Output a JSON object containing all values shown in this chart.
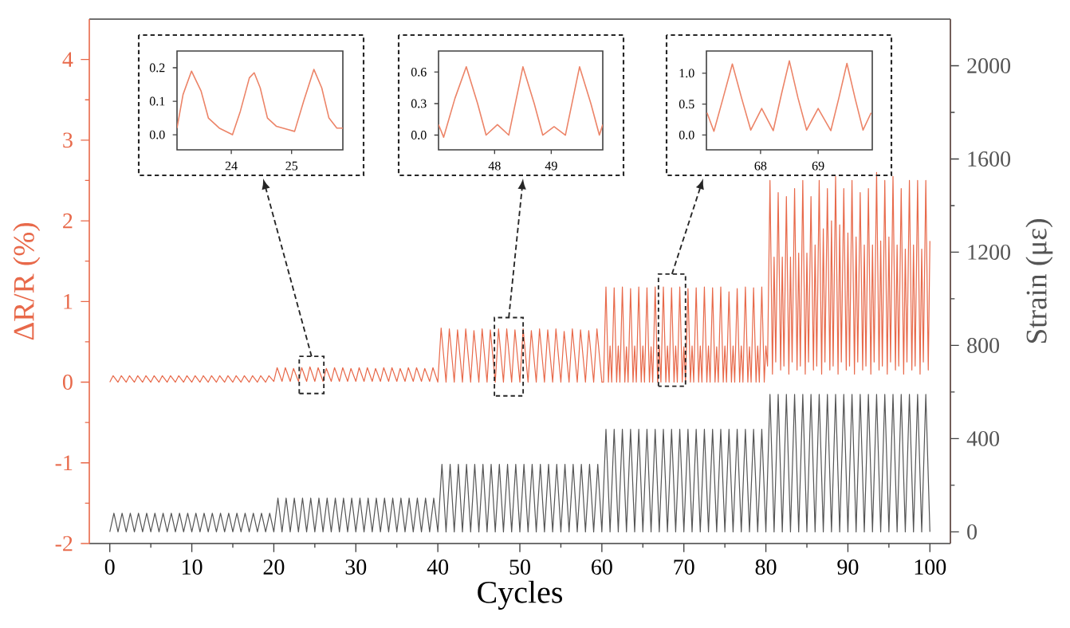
{
  "chart_data": [
    {
      "type": "line",
      "xlabel": "Cycles",
      "ylabel": "ΔR/R (%)",
      "y2label": "Strain (με)",
      "xlim": [
        -2.5,
        102.5
      ],
      "xticks": [
        0,
        10,
        20,
        30,
        40,
        50,
        60,
        70,
        80,
        90,
        100
      ],
      "ylim": [
        -2,
        4.5
      ],
      "yticks": [
        -2,
        -1,
        0,
        1,
        2,
        3,
        4
      ],
      "y2lim": [
        -50,
        2200
      ],
      "y2ticks": [
        0,
        400,
        800,
        1200,
        1600,
        2000
      ],
      "series": [
        {
          "color": "#e8694a",
          "x": [
            0,
            0.4,
            1,
            1.4,
            2,
            2.4,
            3,
            3.4,
            4,
            4.4,
            5,
            5.4,
            6,
            6.4,
            7,
            7.4,
            8,
            8.4,
            9,
            9.4,
            10,
            10.4,
            11,
            11.4,
            12,
            12.4,
            13,
            13.4,
            14,
            14.4,
            15,
            15.4,
            16,
            16.4,
            17,
            17.4,
            18,
            18.4,
            19,
            19.4,
            20,
            20.4,
            21,
            21.4,
            22,
            22.4,
            23,
            23.4,
            24,
            24.4,
            25,
            25.4,
            26,
            26.4,
            27,
            27.4,
            28,
            28.4,
            29,
            29.4,
            30,
            30.4,
            31,
            31.4,
            32,
            32.4,
            33,
            33.4,
            34,
            34.4,
            35,
            35.4,
            36,
            36.4,
            37,
            37.4,
            38,
            38.4,
            39,
            39.4,
            40,
            40.4,
            41,
            41.4,
            42,
            42.4,
            43,
            43.4,
            44,
            44.4,
            45,
            45.4,
            46,
            46.4,
            47,
            47.4,
            48,
            48.4,
            49,
            49.4,
            50,
            50.4,
            51,
            51.4,
            52,
            52.4,
            53,
            53.4,
            54,
            54.4,
            55,
            55.4,
            56,
            56.4,
            57,
            57.4,
            58,
            58.4,
            59,
            59.4,
            60,
            60.2,
            60.5,
            60.8,
            61,
            61.2,
            61.5,
            61.8,
            62,
            62.2,
            62.5,
            62.8,
            63,
            63.2,
            63.5,
            63.8,
            64,
            64.2,
            64.5,
            64.8,
            65,
            65.2,
            65.5,
            65.8,
            66,
            66.2,
            66.5,
            66.8,
            67,
            67.2,
            67.5,
            67.8,
            68,
            68.2,
            68.5,
            68.8,
            69,
            69.2,
            69.5,
            69.8,
            70,
            70.2,
            70.5,
            70.8,
            71,
            71.2,
            71.5,
            71.8,
            72,
            72.2,
            72.5,
            72.8,
            73,
            73.2,
            73.5,
            73.8,
            74,
            74.2,
            74.5,
            74.8,
            75,
            75.2,
            75.5,
            75.8,
            76,
            76.2,
            76.5,
            76.8,
            77,
            77.2,
            77.5,
            77.8,
            78,
            78.2,
            78.5,
            78.8,
            79,
            79.2,
            79.5,
            79.8,
            80,
            80.2,
            80.5,
            80.8,
            81,
            81.2,
            81.5,
            81.8,
            82,
            82.2,
            82.5,
            82.8,
            83,
            83.2,
            83.5,
            83.8,
            84,
            84.2,
            84.5,
            84.8,
            85,
            85.2,
            85.5,
            85.8,
            86,
            86.2,
            86.5,
            86.8,
            87,
            87.2,
            87.5,
            87.8,
            88,
            88.2,
            88.5,
            88.8,
            89,
            89.2,
            89.5,
            89.8,
            90,
            90.2,
            90.5,
            90.8,
            91,
            91.2,
            91.5,
            91.8,
            92,
            92.2,
            92.5,
            92.8,
            93,
            93.2,
            93.5,
            93.8,
            94,
            94.2,
            94.5,
            94.8,
            95,
            95.2,
            95.5,
            95.8,
            96,
            96.2,
            96.5,
            96.8,
            97,
            97.2,
            97.5,
            97.8,
            98,
            98.2,
            98.5,
            98.8,
            99,
            99.2,
            99.5,
            99.8,
            100
          ],
          "values": [
            0,
            0.08,
            0,
            0.08,
            0,
            0.08,
            0,
            0.08,
            0,
            0.08,
            0,
            0.08,
            0,
            0.08,
            0,
            0.08,
            0,
            0.08,
            0,
            0.08,
            0,
            0.08,
            0,
            0.08,
            0,
            0.08,
            0,
            0.08,
            0,
            0.08,
            0,
            0.08,
            0,
            0.08,
            0,
            0.08,
            0,
            0.08,
            0,
            0.08,
            0.01,
            0.18,
            0.01,
            0.18,
            0.01,
            0.17,
            0.01,
            0.18,
            0.01,
            0.19,
            0.01,
            0.18,
            0.01,
            0.17,
            0.01,
            0.18,
            0.01,
            0.18,
            0.01,
            0.17,
            0.01,
            0.18,
            0.01,
            0.18,
            0.01,
            0.17,
            0.01,
            0.18,
            0.01,
            0.18,
            0.01,
            0.17,
            0.01,
            0.18,
            0.01,
            0.18,
            0.01,
            0.17,
            0.01,
            0.18,
            0,
            0.67,
            0,
            0.66,
            0,
            0.65,
            0,
            0.66,
            0,
            0.64,
            0,
            0.66,
            0,
            0.65,
            0,
            0.66,
            0,
            0.66,
            0,
            0.65,
            0,
            0.66,
            0,
            0.64,
            0,
            0.66,
            0,
            0.65,
            0,
            0.66,
            0,
            0.63,
            0,
            0.66,
            0,
            0.65,
            0,
            0.64,
            0,
            0.66,
            0,
            0,
            1.18,
            0,
            0.45,
            0,
            1.17,
            0,
            0.45,
            0,
            1.18,
            0,
            0.44,
            0,
            1.16,
            0,
            0.45,
            0,
            1.18,
            0,
            0.45,
            0,
            1.17,
            0,
            0.44,
            0,
            1.18,
            0,
            0.45,
            0,
            1.18,
            0,
            0.45,
            0,
            1.17,
            0,
            0.45,
            0,
            1.18,
            0,
            0.44,
            0,
            1.16,
            0,
            0.45,
            0,
            1.17,
            0,
            0.45,
            0,
            1.18,
            0,
            0.45,
            0,
            1.17,
            0,
            0.44,
            0,
            1.18,
            0,
            0.45,
            0,
            1.12,
            0,
            0.45,
            0,
            1.16,
            0,
            0.45,
            0,
            1.18,
            0,
            0.44,
            0,
            1.17,
            0,
            0.45,
            0,
            1.18,
            0,
            0.45,
            0.2,
            2.5,
            0.1,
            1.55,
            0.25,
            2.35,
            0.15,
            1.55,
            0.2,
            2.3,
            0.1,
            1.55,
            0.25,
            2.4,
            0.15,
            1.6,
            0.2,
            2.5,
            0.1,
            1.6,
            0.25,
            2.3,
            0.15,
            1.7,
            0.2,
            2.5,
            0.1,
            1.9,
            0.25,
            2.4,
            0.15,
            2.0,
            0.2,
            2.55,
            0.1,
            1.95,
            0.25,
            2.4,
            0.15,
            1.85,
            0.2,
            2.5,
            0.1,
            1.8,
            0.25,
            2.35,
            0.15,
            1.7,
            0.2,
            2.4,
            0.1,
            1.7,
            0.25,
            2.6,
            0.15,
            1.75,
            0.2,
            2.5,
            0.1,
            1.8,
            0.25,
            2.55,
            0.15,
            1.7,
            0.2,
            2.4,
            0.1,
            1.65,
            0.25,
            2.5,
            0.15,
            1.7,
            0.2,
            2.5,
            0.1,
            1.65,
            0.25,
            2.5,
            0.15,
            1.75
          ]
        },
        {
          "color": "#555555",
          "axis": "y2",
          "x": [
            0,
            0.5,
            1,
            1.5,
            2,
            2.5,
            3,
            3.5,
            4,
            4.5,
            5,
            5.5,
            6,
            6.5,
            7,
            7.5,
            8,
            8.5,
            9,
            9.5,
            10,
            10.5,
            11,
            11.5,
            12,
            12.5,
            13,
            13.5,
            14,
            14.5,
            15,
            15.5,
            16,
            16.5,
            17,
            17.5,
            18,
            18.5,
            19,
            19.5,
            20,
            20.5,
            21,
            21.5,
            22,
            22.5,
            23,
            23.5,
            24,
            24.5,
            25,
            25.5,
            26,
            26.5,
            27,
            27.5,
            28,
            28.5,
            29,
            29.5,
            30,
            30.5,
            31,
            31.5,
            32,
            32.5,
            33,
            33.5,
            34,
            34.5,
            35,
            35.5,
            36,
            36.5,
            37,
            37.5,
            38,
            38.5,
            39,
            39.5,
            40,
            40.5,
            41,
            41.5,
            42,
            42.5,
            43,
            43.5,
            44,
            44.5,
            45,
            45.5,
            46,
            46.5,
            47,
            47.5,
            48,
            48.5,
            49,
            49.5,
            50,
            50.5,
            51,
            51.5,
            52,
            52.5,
            53,
            53.5,
            54,
            54.5,
            55,
            55.5,
            56,
            56.5,
            57,
            57.5,
            58,
            58.5,
            59,
            59.5,
            60,
            60.5,
            61,
            61.5,
            62,
            62.5,
            63,
            63.5,
            64,
            64.5,
            65,
            65.5,
            66,
            66.5,
            67,
            67.5,
            68,
            68.5,
            69,
            69.5,
            70,
            70.5,
            71,
            71.5,
            72,
            72.5,
            73,
            73.5,
            74,
            74.5,
            75,
            75.5,
            76,
            76.5,
            77,
            77.5,
            78,
            78.5,
            79,
            79.5,
            80,
            80.5,
            81,
            81.5,
            82,
            82.5,
            83,
            83.5,
            84,
            84.5,
            85,
            85.5,
            86,
            86.5,
            87,
            87.5,
            88,
            88.5,
            89,
            89.5,
            90,
            90.5,
            91,
            91.5,
            92,
            92.5,
            93,
            93.5,
            94,
            94.5,
            95,
            95.5,
            96,
            96.5,
            97,
            97.5,
            98,
            98.5,
            99,
            99.5,
            100
          ],
          "values": [
            0,
            80,
            0,
            80,
            0,
            80,
            0,
            80,
            0,
            80,
            0,
            80,
            0,
            80,
            0,
            80,
            0,
            80,
            0,
            80,
            0,
            80,
            0,
            80,
            0,
            80,
            0,
            80,
            0,
            80,
            0,
            80,
            0,
            80,
            0,
            80,
            0,
            80,
            0,
            80,
            0,
            145,
            0,
            145,
            0,
            145,
            0,
            145,
            0,
            145,
            0,
            145,
            0,
            145,
            0,
            145,
            0,
            145,
            0,
            145,
            0,
            145,
            0,
            145,
            0,
            145,
            0,
            145,
            0,
            145,
            0,
            145,
            0,
            145,
            0,
            145,
            0,
            145,
            0,
            145,
            0,
            290,
            0,
            290,
            0,
            290,
            0,
            290,
            0,
            290,
            0,
            290,
            0,
            290,
            0,
            290,
            0,
            290,
            0,
            290,
            0,
            290,
            0,
            290,
            0,
            290,
            0,
            290,
            0,
            290,
            0,
            290,
            0,
            290,
            0,
            290,
            0,
            290,
            0,
            290,
            0,
            440,
            0,
            440,
            0,
            440,
            0,
            440,
            0,
            440,
            0,
            440,
            0,
            440,
            0,
            440,
            0,
            440,
            0,
            440,
            0,
            440,
            0,
            440,
            0,
            440,
            0,
            440,
            0,
            440,
            0,
            440,
            0,
            440,
            0,
            440,
            0,
            440,
            0,
            440,
            0,
            590,
            0,
            590,
            0,
            590,
            0,
            590,
            0,
            590,
            0,
            590,
            0,
            590,
            0,
            590,
            0,
            590,
            0,
            590,
            0,
            590,
            0,
            590,
            0,
            590,
            0,
            590,
            0,
            590,
            0,
            590,
            0,
            590,
            0,
            590,
            0,
            590,
            0,
            590,
            0
          ]
        }
      ]
    },
    {
      "type": "line",
      "xlim": [
        23.1,
        25.85
      ],
      "ylim": [
        -0.045,
        0.25
      ],
      "xticks": [
        24,
        25
      ],
      "yticks": [
        {
          "value": 0,
          "label": "0.0"
        },
        {
          "value": 0.1,
          "label": "0.1"
        },
        {
          "value": 0.2,
          "label": "0.2"
        }
      ],
      "series": [
        {
          "color": "#ec8468",
          "x": [
            23.1,
            23.2,
            23.34,
            23.5,
            23.62,
            23.8,
            24.02,
            24.15,
            24.3,
            24.38,
            24.48,
            24.6,
            24.75,
            24.95,
            25.05,
            25.2,
            25.37,
            25.5,
            25.62,
            25.75,
            25.85
          ],
          "values": [
            0.02,
            0.12,
            0.19,
            0.13,
            0.05,
            0.02,
            0.0,
            0.07,
            0.17,
            0.185,
            0.14,
            0.05,
            0.025,
            0.015,
            0.01,
            0.1,
            0.195,
            0.14,
            0.05,
            0.02,
            0.02
          ]
        }
      ]
    },
    {
      "type": "line",
      "xlim": [
        47.01,
        49.91
      ],
      "ylim": [
        -0.14,
        0.8
      ],
      "xticks": [
        48,
        49
      ],
      "yticks": [
        {
          "value": 0,
          "label": "0.0"
        },
        {
          "value": 0.3,
          "label": "0.3"
        },
        {
          "value": 0.6,
          "label": "0.6"
        }
      ],
      "series": [
        {
          "color": "#ec8468",
          "x": [
            47.01,
            47.1,
            47.3,
            47.5,
            47.7,
            47.85,
            48.05,
            48.25,
            48.5,
            48.7,
            48.85,
            49.05,
            49.25,
            49.5,
            49.7,
            49.85,
            49.91
          ],
          "values": [
            0.1,
            -0.02,
            0.35,
            0.65,
            0.3,
            0.0,
            0.1,
            0.0,
            0.65,
            0.3,
            0.0,
            0.08,
            0.0,
            0.65,
            0.3,
            0.0,
            0.1
          ]
        }
      ]
    },
    {
      "type": "line",
      "xlim": [
        67.06,
        69.94
      ],
      "ylim": [
        -0.24,
        1.36
      ],
      "xticks": [
        68,
        69
      ],
      "yticks": [
        {
          "value": 0,
          "label": "0.0"
        },
        {
          "value": 0.5,
          "label": "0.5"
        },
        {
          "value": 1.0,
          "label": "1.0"
        }
      ],
      "series": [
        {
          "color": "#ec8468",
          "x": [
            67.07,
            67.19,
            67.35,
            67.51,
            67.67,
            67.83,
            68.02,
            68.22,
            68.36,
            68.5,
            68.65,
            68.8,
            69.0,
            69.22,
            69.36,
            69.5,
            69.64,
            69.78,
            69.92
          ],
          "values": [
            0.36,
            0.06,
            0.6,
            1.15,
            0.6,
            0.08,
            0.43,
            0.07,
            0.65,
            1.2,
            0.6,
            0.08,
            0.43,
            0.07,
            0.6,
            1.16,
            0.6,
            0.08,
            0.36
          ]
        }
      ]
    }
  ]
}
